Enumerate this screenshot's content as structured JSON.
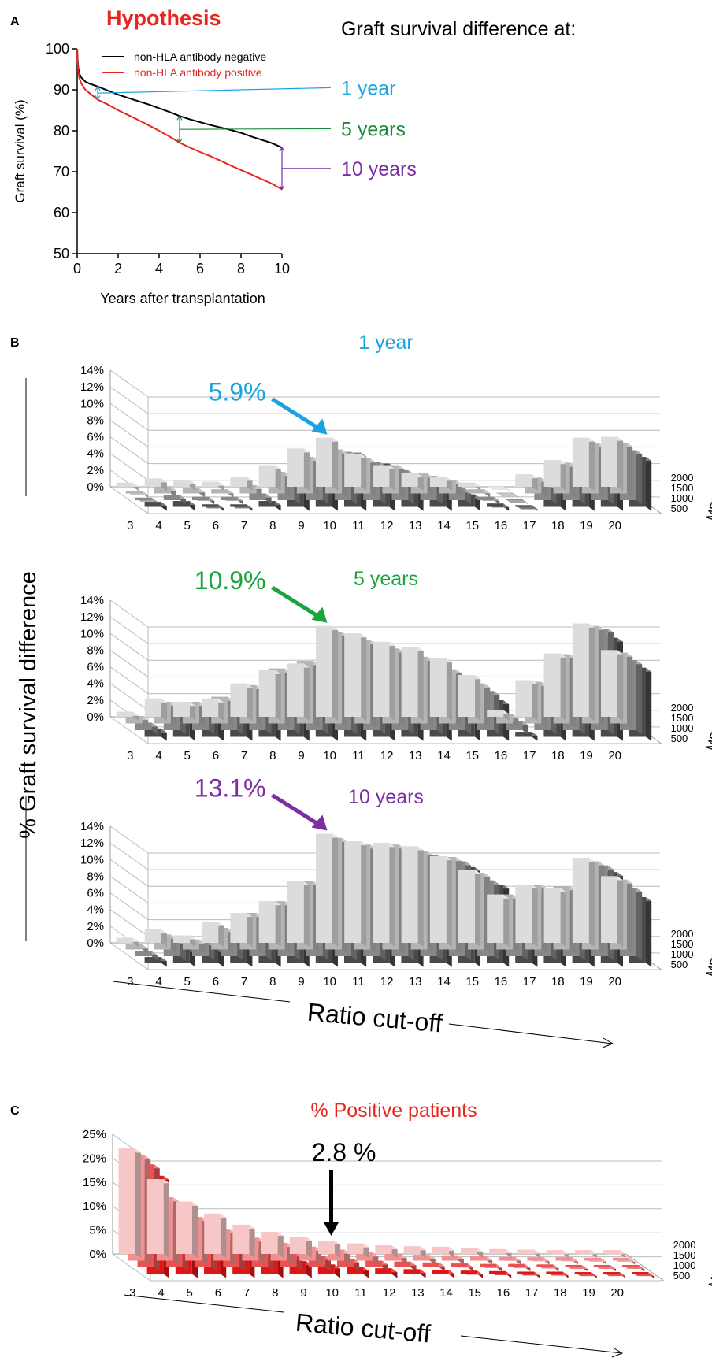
{
  "chart_data": [
    {
      "panel": "A",
      "type": "line",
      "title": "Hypothesis",
      "xlabel": "Years after transplantation",
      "ylabel": "Graft survival (%)",
      "xlim": [
        0,
        10
      ],
      "ylim": [
        50,
        100
      ],
      "xticks": [
        0,
        2,
        4,
        6,
        8,
        10
      ],
      "yticks": [
        50,
        60,
        70,
        80,
        90,
        100
      ],
      "legend_position": "top-left",
      "series": [
        {
          "name": "non-HLA antibody negative",
          "color": "#000000",
          "x": [
            0,
            0.02,
            0.05,
            0.1,
            0.2,
            0.4,
            0.6,
            1,
            1.5,
            2,
            2.5,
            3,
            3.5,
            4,
            4.5,
            5,
            5.5,
            6,
            6.5,
            7,
            7.5,
            8,
            8.5,
            9,
            9.5,
            10
          ],
          "y": [
            100,
            97.5,
            95.5,
            94,
            93,
            92,
            91.5,
            90.8,
            89.8,
            88.8,
            88,
            87.2,
            86.4,
            85.5,
            84.6,
            83.6,
            82.8,
            82.1,
            81.4,
            80.8,
            80.2,
            79.5,
            78.6,
            77.8,
            77,
            75.9
          ]
        },
        {
          "name": "non-HLA antibody positive",
          "color": "#e8251f",
          "x": [
            0,
            0.02,
            0.05,
            0.1,
            0.2,
            0.4,
            0.6,
            1,
            1.5,
            2,
            2.5,
            3,
            3.5,
            4,
            4.5,
            5,
            5.5,
            6,
            6.5,
            7,
            7.5,
            8,
            8.5,
            9,
            9.5,
            10
          ],
          "y": [
            100,
            97,
            94.5,
            93,
            91.5,
            90,
            89.2,
            87.6,
            86.4,
            85,
            83.8,
            82.6,
            81.3,
            80,
            78.6,
            77.1,
            75.9,
            74.8,
            73.8,
            72.7,
            71.5,
            70.4,
            69.3,
            68.2,
            67.1,
            65.7
          ]
        }
      ],
      "annotation_title": "Graft survival difference at:",
      "annotations": [
        {
          "label": "1 year",
          "x": 1,
          "y_from": 87.6,
          "y_to": 90.8,
          "label_y": 90.5,
          "color": "#1aa3e0"
        },
        {
          "label": "5 years",
          "x": 5,
          "y_from": 77.1,
          "y_to": 83.6,
          "label_y": 80.5,
          "color": "#1a8a3a"
        },
        {
          "label": "10 years",
          "x": 10,
          "y_from": 65.7,
          "y_to": 75.9,
          "label_y": 70.8,
          "color": "#7a2fa2"
        }
      ]
    },
    {
      "panel": "B",
      "type": "bar",
      "subtype": "3d-bar",
      "shared_ylabel": "% Graft survival difference",
      "xlabel": "Ratio cut-off",
      "zlabel": "MFI cut-off",
      "categories": [
        3,
        4,
        5,
        6,
        7,
        8,
        9,
        10,
        11,
        12,
        13,
        14,
        15,
        16,
        17,
        18,
        19,
        20
      ],
      "depth_categories": [
        500,
        1000,
        1500,
        2000
      ],
      "depth_colors": [
        "#dcdcdc",
        "#b4b4b4",
        "#888888",
        "#4a4a4a"
      ],
      "subplots": [
        {
          "title": "1 year",
          "title_color": "#1aa3e0",
          "ylim": [
            0,
            14
          ],
          "yticks": [
            0,
            2,
            4,
            6,
            8,
            10,
            12,
            14
          ],
          "highlight": {
            "label": "5.9%",
            "category": 10,
            "depth": 500,
            "color": "#1aa3e0"
          },
          "series": [
            {
              "name": "500",
              "values": [
                0.5,
                1.0,
                0.8,
                0.6,
                1.2,
                2.6,
                4.6,
                5.9,
                4.0,
                2.6,
                1.6,
                1.2,
                0.5,
                0.1,
                1.5,
                3.2,
                5.9,
                6.0
              ]
            },
            {
              "name": "1000",
              "values": [
                0.3,
                0.8,
                0.6,
                0.5,
                1.0,
                2.6,
                4.4,
                5.3,
                4.2,
                3.4,
                2.4,
                1.6,
                0.5,
                0.1,
                1.9,
                3.7,
                6.1,
                6.1
              ]
            },
            {
              "name": "1500",
              "values": [
                0.3,
                0.6,
                0.4,
                0.4,
                0.8,
                2.7,
                4.6,
                5.8,
                4.6,
                3.6,
                2.9,
                1.4,
                0.4,
                0.1,
                2.0,
                4.0,
                5.9,
                6.0
              ]
            },
            {
              "name": "2000",
              "values": [
                0.6,
                0.7,
                0.3,
                0.3,
                0.7,
                2.8,
                5.1,
                6.5,
                5.2,
                3.8,
                2.9,
                1.5,
                0.4,
                0.2,
                2.3,
                4.4,
                6.1,
                6.0
              ]
            }
          ]
        },
        {
          "title": "5 years",
          "title_color": "#1aa33e",
          "ylim": [
            0,
            14
          ],
          "yticks": [
            0,
            2,
            4,
            6,
            8,
            10,
            12,
            14
          ],
          "highlight": {
            "label": "10.9%",
            "category": 10,
            "depth": 500,
            "color": "#1aa33e"
          },
          "series": [
            {
              "name": "500",
              "values": [
                0.6,
                2.2,
                1.8,
                2.2,
                4.0,
                5.6,
                6.4,
                10.9,
                10.0,
                9.0,
                8.4,
                7.0,
                5.0,
                0.8,
                4.4,
                7.6,
                11.2,
                8.0
              ]
            },
            {
              "name": "1000",
              "values": [
                0.9,
                2.6,
                2.6,
                3.2,
                4.6,
                6.6,
                7.5,
                11.0,
                10.0,
                9.0,
                8.0,
                6.5,
                4.8,
                1.1,
                5.0,
                8.3,
                11.7,
                8.5
              ]
            },
            {
              "name": "1500",
              "values": [
                0.9,
                2.6,
                2.9,
                3.7,
                5.2,
                6.9,
                7.8,
                11.2,
                10.2,
                9.0,
                7.8,
                6.3,
                4.7,
                1.1,
                5.2,
                8.1,
                12.2,
                8.4
              ]
            },
            {
              "name": "2000",
              "values": [
                1.0,
                2.9,
                3.4,
                4.0,
                5.4,
                7.1,
                8.0,
                11.9,
                10.2,
                8.9,
                7.6,
                5.9,
                4.4,
                0.6,
                5.0,
                7.6,
                11.9,
                8.3
              ]
            }
          ]
        },
        {
          "title": "10 years",
          "title_color": "#7a2fa2",
          "ylim": [
            0,
            14
          ],
          "yticks": [
            0,
            2,
            4,
            6,
            8,
            10,
            12,
            14
          ],
          "highlight": {
            "label": "13.1%",
            "category": 10,
            "depth": 500,
            "color": "#7a2fa2"
          },
          "series": [
            {
              "name": "500",
              "values": [
                0.6,
                1.6,
                0.9,
                2.5,
                3.6,
                5.0,
                7.4,
                13.1,
                12.2,
                12.0,
                11.6,
                10.4,
                8.8,
                5.8,
                7.0,
                6.6,
                10.2,
                8.0
              ]
            },
            {
              "name": "1000",
              "values": [
                0.6,
                1.8,
                1.2,
                2.6,
                4.4,
                5.8,
                8.2,
                13.4,
                12.6,
                12.6,
                11.8,
                11.1,
                9.2,
                6.6,
                7.8,
                7.6,
                10.6,
                8.4
              ]
            },
            {
              "name": "1500",
              "values": [
                0.6,
                2.0,
                1.8,
                2.8,
                4.7,
                6.2,
                8.6,
                13.5,
                13.0,
                13.1,
                12.2,
                11.4,
                9.1,
                7.2,
                7.4,
                6.8,
                10.9,
                8.2
              ]
            },
            {
              "name": "2000",
              "values": [
                0.7,
                1.8,
                1.8,
                2.9,
                4.8,
                6.4,
                8.9,
                13.4,
                13.1,
                13.2,
                12.0,
                11.5,
                9.4,
                7.6,
                7.0,
                6.2,
                10.9,
                7.9
              ]
            }
          ]
        }
      ]
    },
    {
      "panel": "C",
      "type": "bar",
      "subtype": "3d-bar",
      "title": "% Positive patients",
      "title_color": "#e8251f",
      "xlabel": "Ratio cut-off",
      "zlabel": "MFI cut-off",
      "categories": [
        3,
        4,
        5,
        6,
        7,
        8,
        9,
        10,
        11,
        12,
        13,
        14,
        15,
        16,
        17,
        18,
        19,
        20
      ],
      "depth_categories": [
        500,
        1000,
        1500,
        2000
      ],
      "depth_colors": [
        "#f7c6c6",
        "#f19090",
        "#ea5252",
        "#e01616"
      ],
      "ylim": [
        0,
        25
      ],
      "yticks": [
        0,
        5,
        10,
        15,
        20,
        25
      ],
      "ytick_suffix": "%",
      "highlight": {
        "label": "2.8 %",
        "category": 10,
        "depth": 500,
        "color": "#000000"
      },
      "series": [
        {
          "name": "500",
          "values": [
            22.0,
            15.6,
            10.9,
            8.4,
            6.1,
            4.6,
            3.6,
            2.8,
            2.2,
            1.8,
            1.6,
            1.5,
            1.2,
            1.0,
            0.9,
            0.8,
            0.8,
            0.8
          ]
        },
        {
          "name": "1000",
          "values": [
            22.0,
            13.2,
            9.1,
            6.6,
            4.8,
            3.7,
            2.9,
            2.3,
            1.7,
            1.4,
            1.2,
            1.1,
            0.9,
            0.8,
            0.7,
            0.7,
            0.6,
            0.6
          ]
        },
        {
          "name": "1500",
          "values": [
            21.5,
            11.9,
            7.6,
            5.6,
            4.0,
            3.1,
            2.4,
            1.8,
            1.4,
            1.2,
            1.0,
            0.8,
            0.7,
            0.7,
            0.6,
            0.5,
            0.5,
            0.5
          ]
        },
        {
          "name": "2000",
          "values": [
            20.5,
            10.8,
            6.8,
            5.0,
            3.6,
            2.7,
            2.0,
            1.5,
            1.2,
            1.0,
            0.9,
            0.7,
            0.6,
            0.5,
            0.5,
            0.4,
            0.4,
            0.4
          ]
        }
      ]
    }
  ]
}
